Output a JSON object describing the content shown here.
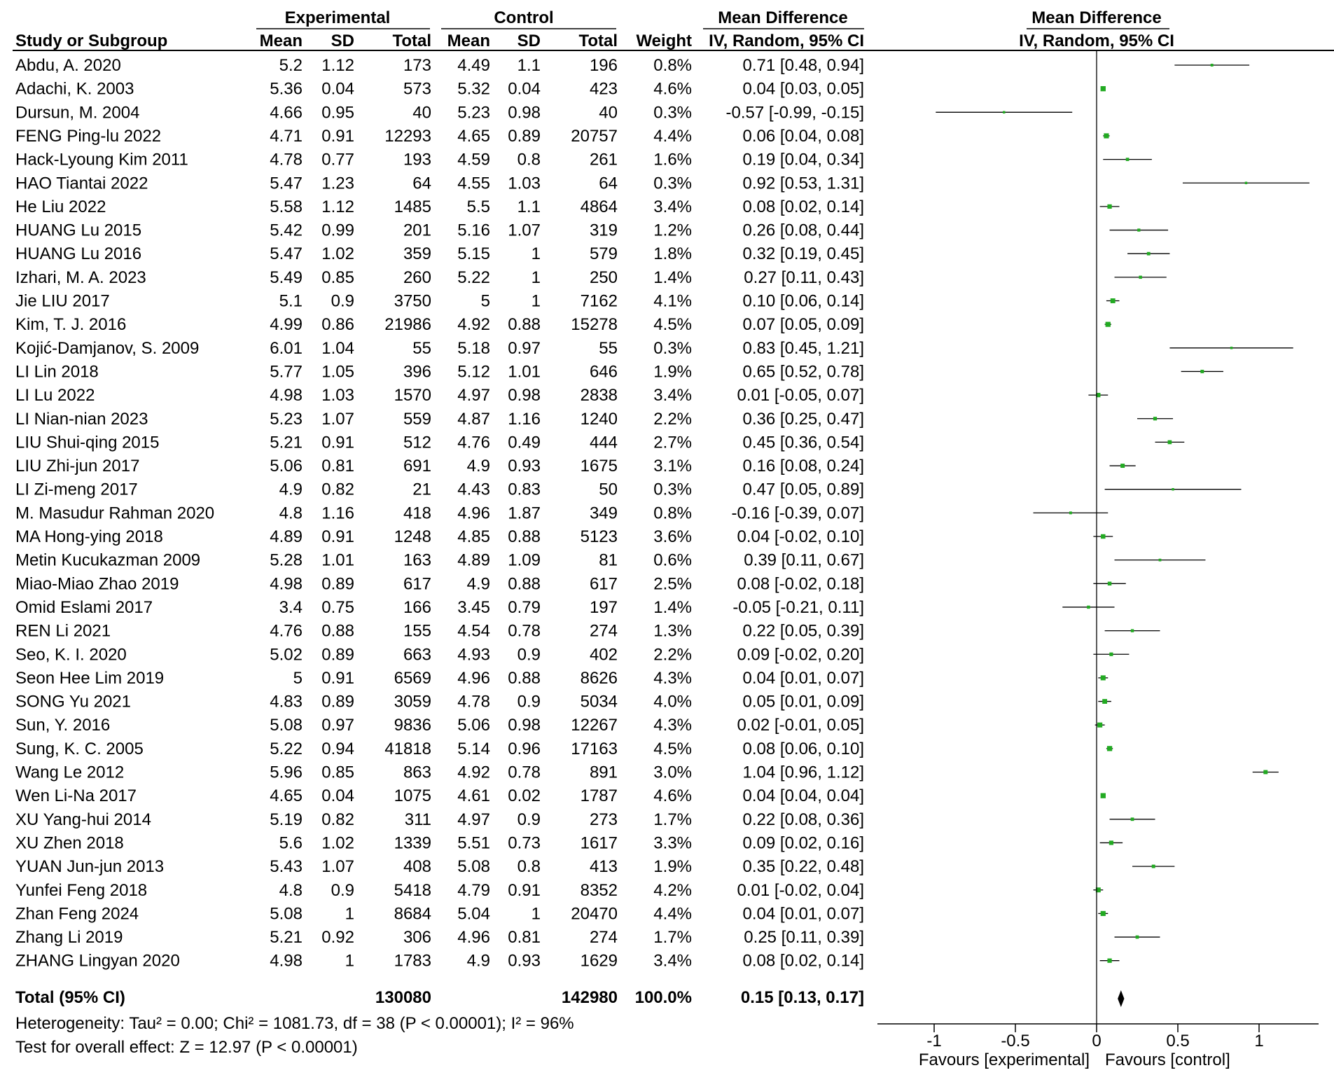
{
  "chart_data": {
    "type": "forest",
    "header": {
      "experimental": "Experimental",
      "control": "Control",
      "mean_difference": "Mean Difference",
      "study_or_subgroup": "Study or Subgroup",
      "mean": "Mean",
      "sd": "SD",
      "total": "Total",
      "weight": "Weight",
      "method": "IV, Random, 95% CI",
      "plot_title": "Mean Difference",
      "plot_method": "IV, Random, 95% CI"
    },
    "columns": [
      "Study or Subgroup",
      "Experimental Mean",
      "Experimental SD",
      "Experimental Total",
      "Control Mean",
      "Control SD",
      "Control Total",
      "Weight",
      "Mean Difference IV, Random, 95% CI"
    ],
    "studies": [
      {
        "study": "Abdu, A. 2020",
        "exp_mean": "5.2",
        "exp_sd": "1.12",
        "exp_total": "173",
        "ctl_mean": "4.49",
        "ctl_sd": "1.1",
        "ctl_total": "196",
        "weight": "0.8%",
        "ci_text": "0.71 [0.48, 0.94]",
        "md": 0.71,
        "lo": 0.48,
        "hi": 0.94
      },
      {
        "study": "Adachi, K. 2003",
        "exp_mean": "5.36",
        "exp_sd": "0.04",
        "exp_total": "573",
        "ctl_mean": "5.32",
        "ctl_sd": "0.04",
        "ctl_total": "423",
        "weight": "4.6%",
        "ci_text": "0.04 [0.03, 0.05]",
        "md": 0.04,
        "lo": 0.03,
        "hi": 0.05
      },
      {
        "study": "Dursun, M. 2004",
        "exp_mean": "4.66",
        "exp_sd": "0.95",
        "exp_total": "40",
        "ctl_mean": "5.23",
        "ctl_sd": "0.98",
        "ctl_total": "40",
        "weight": "0.3%",
        "ci_text": "-0.57 [-0.99, -0.15]",
        "md": -0.57,
        "lo": -0.99,
        "hi": -0.15
      },
      {
        "study": "FENG Ping-lu 2022",
        "exp_mean": "4.71",
        "exp_sd": "0.91",
        "exp_total": "12293",
        "ctl_mean": "4.65",
        "ctl_sd": "0.89",
        "ctl_total": "20757",
        "weight": "4.4%",
        "ci_text": "0.06 [0.04, 0.08]",
        "md": 0.06,
        "lo": 0.04,
        "hi": 0.08
      },
      {
        "study": "Hack-Lyoung Kim 2011",
        "exp_mean": "4.78",
        "exp_sd": "0.77",
        "exp_total": "193",
        "ctl_mean": "4.59",
        "ctl_sd": "0.8",
        "ctl_total": "261",
        "weight": "1.6%",
        "ci_text": "0.19 [0.04, 0.34]",
        "md": 0.19,
        "lo": 0.04,
        "hi": 0.34
      },
      {
        "study": "HAO Tiantai 2022",
        "exp_mean": "5.47",
        "exp_sd": "1.23",
        "exp_total": "64",
        "ctl_mean": "4.55",
        "ctl_sd": "1.03",
        "ctl_total": "64",
        "weight": "0.3%",
        "ci_text": "0.92 [0.53, 1.31]",
        "md": 0.92,
        "lo": 0.53,
        "hi": 1.31
      },
      {
        "study": "He Liu 2022",
        "exp_mean": "5.58",
        "exp_sd": "1.12",
        "exp_total": "1485",
        "ctl_mean": "5.5",
        "ctl_sd": "1.1",
        "ctl_total": "4864",
        "weight": "3.4%",
        "ci_text": "0.08 [0.02, 0.14]",
        "md": 0.08,
        "lo": 0.02,
        "hi": 0.14
      },
      {
        "study": "HUANG Lu 2015",
        "exp_mean": "5.42",
        "exp_sd": "0.99",
        "exp_total": "201",
        "ctl_mean": "5.16",
        "ctl_sd": "1.07",
        "ctl_total": "319",
        "weight": "1.2%",
        "ci_text": "0.26 [0.08, 0.44]",
        "md": 0.26,
        "lo": 0.08,
        "hi": 0.44
      },
      {
        "study": "HUANG Lu 2016",
        "exp_mean": "5.47",
        "exp_sd": "1.02",
        "exp_total": "359",
        "ctl_mean": "5.15",
        "ctl_sd": "1",
        "ctl_total": "579",
        "weight": "1.8%",
        "ci_text": "0.32 [0.19, 0.45]",
        "md": 0.32,
        "lo": 0.19,
        "hi": 0.45
      },
      {
        "study": "Izhari, M. A. 2023",
        "exp_mean": "5.49",
        "exp_sd": "0.85",
        "exp_total": "260",
        "ctl_mean": "5.22",
        "ctl_sd": "1",
        "ctl_total": "250",
        "weight": "1.4%",
        "ci_text": "0.27 [0.11, 0.43]",
        "md": 0.27,
        "lo": 0.11,
        "hi": 0.43
      },
      {
        "study": "Jie LIU 2017",
        "exp_mean": "5.1",
        "exp_sd": "0.9",
        "exp_total": "3750",
        "ctl_mean": "5",
        "ctl_sd": "1",
        "ctl_total": "7162",
        "weight": "4.1%",
        "ci_text": "0.10 [0.06, 0.14]",
        "md": 0.1,
        "lo": 0.06,
        "hi": 0.14
      },
      {
        "study": "Kim, T. J. 2016",
        "exp_mean": "4.99",
        "exp_sd": "0.86",
        "exp_total": "21986",
        "ctl_mean": "4.92",
        "ctl_sd": "0.88",
        "ctl_total": "15278",
        "weight": "4.5%",
        "ci_text": "0.07 [0.05, 0.09]",
        "md": 0.07,
        "lo": 0.05,
        "hi": 0.09
      },
      {
        "study": "Kojić-Damjanov, S. 2009",
        "exp_mean": "6.01",
        "exp_sd": "1.04",
        "exp_total": "55",
        "ctl_mean": "5.18",
        "ctl_sd": "0.97",
        "ctl_total": "55",
        "weight": "0.3%",
        "ci_text": "0.83 [0.45, 1.21]",
        "md": 0.83,
        "lo": 0.45,
        "hi": 1.21
      },
      {
        "study": "LI Lin 2018",
        "exp_mean": "5.77",
        "exp_sd": "1.05",
        "exp_total": "396",
        "ctl_mean": "5.12",
        "ctl_sd": "1.01",
        "ctl_total": "646",
        "weight": "1.9%",
        "ci_text": "0.65 [0.52, 0.78]",
        "md": 0.65,
        "lo": 0.52,
        "hi": 0.78
      },
      {
        "study": "LI Lu 2022",
        "exp_mean": "4.98",
        "exp_sd": "1.03",
        "exp_total": "1570",
        "ctl_mean": "4.97",
        "ctl_sd": "0.98",
        "ctl_total": "2838",
        "weight": "3.4%",
        "ci_text": "0.01 [-0.05, 0.07]",
        "md": 0.01,
        "lo": -0.05,
        "hi": 0.07
      },
      {
        "study": "LI Nian-nian 2023",
        "exp_mean": "5.23",
        "exp_sd": "1.07",
        "exp_total": "559",
        "ctl_mean": "4.87",
        "ctl_sd": "1.16",
        "ctl_total": "1240",
        "weight": "2.2%",
        "ci_text": "0.36 [0.25, 0.47]",
        "md": 0.36,
        "lo": 0.25,
        "hi": 0.47
      },
      {
        "study": "LIU Shui-qing 2015",
        "exp_mean": "5.21",
        "exp_sd": "0.91",
        "exp_total": "512",
        "ctl_mean": "4.76",
        "ctl_sd": "0.49",
        "ctl_total": "444",
        "weight": "2.7%",
        "ci_text": "0.45 [0.36, 0.54]",
        "md": 0.45,
        "lo": 0.36,
        "hi": 0.54
      },
      {
        "study": "LIU Zhi-jun 2017",
        "exp_mean": "5.06",
        "exp_sd": "0.81",
        "exp_total": "691",
        "ctl_mean": "4.9",
        "ctl_sd": "0.93",
        "ctl_total": "1675",
        "weight": "3.1%",
        "ci_text": "0.16 [0.08, 0.24]",
        "md": 0.16,
        "lo": 0.08,
        "hi": 0.24
      },
      {
        "study": "LI Zi-meng 2017",
        "exp_mean": "4.9",
        "exp_sd": "0.82",
        "exp_total": "21",
        "ctl_mean": "4.43",
        "ctl_sd": "0.83",
        "ctl_total": "50",
        "weight": "0.3%",
        "ci_text": "0.47 [0.05, 0.89]",
        "md": 0.47,
        "lo": 0.05,
        "hi": 0.89
      },
      {
        "study": "M. Masudur Rahman 2020",
        "exp_mean": "4.8",
        "exp_sd": "1.16",
        "exp_total": "418",
        "ctl_mean": "4.96",
        "ctl_sd": "1.87",
        "ctl_total": "349",
        "weight": "0.8%",
        "ci_text": "-0.16 [-0.39, 0.07]",
        "md": -0.16,
        "lo": -0.39,
        "hi": 0.07
      },
      {
        "study": "MA Hong-ying 2018",
        "exp_mean": "4.89",
        "exp_sd": "0.91",
        "exp_total": "1248",
        "ctl_mean": "4.85",
        "ctl_sd": "0.88",
        "ctl_total": "5123",
        "weight": "3.6%",
        "ci_text": "0.04 [-0.02, 0.10]",
        "md": 0.04,
        "lo": -0.02,
        "hi": 0.1
      },
      {
        "study": "Metin Kucukazman 2009",
        "exp_mean": "5.28",
        "exp_sd": "1.01",
        "exp_total": "163",
        "ctl_mean": "4.89",
        "ctl_sd": "1.09",
        "ctl_total": "81",
        "weight": "0.6%",
        "ci_text": "0.39 [0.11, 0.67]",
        "md": 0.39,
        "lo": 0.11,
        "hi": 0.67
      },
      {
        "study": "Miao-Miao Zhao 2019",
        "exp_mean": "4.98",
        "exp_sd": "0.89",
        "exp_total": "617",
        "ctl_mean": "4.9",
        "ctl_sd": "0.88",
        "ctl_total": "617",
        "weight": "2.5%",
        "ci_text": "0.08 [-0.02, 0.18]",
        "md": 0.08,
        "lo": -0.02,
        "hi": 0.18
      },
      {
        "study": "Omid Eslami 2017",
        "exp_mean": "3.4",
        "exp_sd": "0.75",
        "exp_total": "166",
        "ctl_mean": "3.45",
        "ctl_sd": "0.79",
        "ctl_total": "197",
        "weight": "1.4%",
        "ci_text": "-0.05 [-0.21, 0.11]",
        "md": -0.05,
        "lo": -0.21,
        "hi": 0.11
      },
      {
        "study": "REN Li 2021",
        "exp_mean": "4.76",
        "exp_sd": "0.88",
        "exp_total": "155",
        "ctl_mean": "4.54",
        "ctl_sd": "0.78",
        "ctl_total": "274",
        "weight": "1.3%",
        "ci_text": "0.22 [0.05, 0.39]",
        "md": 0.22,
        "lo": 0.05,
        "hi": 0.39
      },
      {
        "study": "Seo, K. I. 2020",
        "exp_mean": "5.02",
        "exp_sd": "0.89",
        "exp_total": "663",
        "ctl_mean": "4.93",
        "ctl_sd": "0.9",
        "ctl_total": "402",
        "weight": "2.2%",
        "ci_text": "0.09 [-0.02, 0.20]",
        "md": 0.09,
        "lo": -0.02,
        "hi": 0.2
      },
      {
        "study": "Seon Hee Lim 2019",
        "exp_mean": "5",
        "exp_sd": "0.91",
        "exp_total": "6569",
        "ctl_mean": "4.96",
        "ctl_sd": "0.88",
        "ctl_total": "8626",
        "weight": "4.3%",
        "ci_text": "0.04 [0.01, 0.07]",
        "md": 0.04,
        "lo": 0.01,
        "hi": 0.07
      },
      {
        "study": "SONG Yu 2021",
        "exp_mean": "4.83",
        "exp_sd": "0.89",
        "exp_total": "3059",
        "ctl_mean": "4.78",
        "ctl_sd": "0.9",
        "ctl_total": "5034",
        "weight": "4.0%",
        "ci_text": "0.05 [0.01, 0.09]",
        "md": 0.05,
        "lo": 0.01,
        "hi": 0.09
      },
      {
        "study": "Sun, Y. 2016",
        "exp_mean": "5.08",
        "exp_sd": "0.97",
        "exp_total": "9836",
        "ctl_mean": "5.06",
        "ctl_sd": "0.98",
        "ctl_total": "12267",
        "weight": "4.3%",
        "ci_text": "0.02 [-0.01, 0.05]",
        "md": 0.02,
        "lo": -0.01,
        "hi": 0.05
      },
      {
        "study": "Sung, K. C. 2005",
        "exp_mean": "5.22",
        "exp_sd": "0.94",
        "exp_total": "41818",
        "ctl_mean": "5.14",
        "ctl_sd": "0.96",
        "ctl_total": "17163",
        "weight": "4.5%",
        "ci_text": "0.08 [0.06, 0.10]",
        "md": 0.08,
        "lo": 0.06,
        "hi": 0.1
      },
      {
        "study": "Wang Le 2012",
        "exp_mean": "5.96",
        "exp_sd": "0.85",
        "exp_total": "863",
        "ctl_mean": "4.92",
        "ctl_sd": "0.78",
        "ctl_total": "891",
        "weight": "3.0%",
        "ci_text": "1.04 [0.96, 1.12]",
        "md": 1.04,
        "lo": 0.96,
        "hi": 1.12
      },
      {
        "study": "Wen Li-Na 2017",
        "exp_mean": "4.65",
        "exp_sd": "0.04",
        "exp_total": "1075",
        "ctl_mean": "4.61",
        "ctl_sd": "0.02",
        "ctl_total": "1787",
        "weight": "4.6%",
        "ci_text": "0.04 [0.04, 0.04]",
        "md": 0.04,
        "lo": 0.04,
        "hi": 0.04
      },
      {
        "study": "XU Yang-hui 2014",
        "exp_mean": "5.19",
        "exp_sd": "0.82",
        "exp_total": "311",
        "ctl_mean": "4.97",
        "ctl_sd": "0.9",
        "ctl_total": "273",
        "weight": "1.7%",
        "ci_text": "0.22 [0.08, 0.36]",
        "md": 0.22,
        "lo": 0.08,
        "hi": 0.36
      },
      {
        "study": "XU Zhen 2018",
        "exp_mean": "5.6",
        "exp_sd": "1.02",
        "exp_total": "1339",
        "ctl_mean": "5.51",
        "ctl_sd": "0.73",
        "ctl_total": "1617",
        "weight": "3.3%",
        "ci_text": "0.09 [0.02, 0.16]",
        "md": 0.09,
        "lo": 0.02,
        "hi": 0.16
      },
      {
        "study": "YUAN Jun-jun 2013",
        "exp_mean": "5.43",
        "exp_sd": "1.07",
        "exp_total": "408",
        "ctl_mean": "5.08",
        "ctl_sd": "0.8",
        "ctl_total": "413",
        "weight": "1.9%",
        "ci_text": "0.35 [0.22, 0.48]",
        "md": 0.35,
        "lo": 0.22,
        "hi": 0.48
      },
      {
        "study": "Yunfei Feng 2018",
        "exp_mean": "4.8",
        "exp_sd": "0.9",
        "exp_total": "5418",
        "ctl_mean": "4.79",
        "ctl_sd": "0.91",
        "ctl_total": "8352",
        "weight": "4.2%",
        "ci_text": "0.01 [-0.02, 0.04]",
        "md": 0.01,
        "lo": -0.02,
        "hi": 0.04
      },
      {
        "study": "Zhan Feng 2024",
        "exp_mean": "5.08",
        "exp_sd": "1",
        "exp_total": "8684",
        "ctl_mean": "5.04",
        "ctl_sd": "1",
        "ctl_total": "20470",
        "weight": "4.4%",
        "ci_text": "0.04 [0.01, 0.07]",
        "md": 0.04,
        "lo": 0.01,
        "hi": 0.07
      },
      {
        "study": "Zhang Li 2019",
        "exp_mean": "5.21",
        "exp_sd": "0.92",
        "exp_total": "306",
        "ctl_mean": "4.96",
        "ctl_sd": "0.81",
        "ctl_total": "274",
        "weight": "1.7%",
        "ci_text": "0.25 [0.11, 0.39]",
        "md": 0.25,
        "lo": 0.11,
        "hi": 0.39
      },
      {
        "study": "ZHANG Lingyan 2020",
        "exp_mean": "4.98",
        "exp_sd": "1",
        "exp_total": "1783",
        "ctl_mean": "4.9",
        "ctl_sd": "0.93",
        "ctl_total": "1629",
        "weight": "3.4%",
        "ci_text": "0.08 [0.02, 0.14]",
        "md": 0.08,
        "lo": 0.02,
        "hi": 0.14
      }
    ],
    "total": {
      "label": "Total (95% CI)",
      "exp_total": "130080",
      "ctl_total": "142980",
      "weight": "100.0%",
      "ci_text": "0.15 [0.13, 0.17]",
      "md": 0.15,
      "lo": 0.13,
      "hi": 0.17
    },
    "heterogeneity": "Heterogeneity: Tau² = 0.00; Chi² = 1081.73, df = 38 (P < 0.00001); I² = 96%",
    "overall_effect": "Test for overall effect: Z = 12.97 (P < 0.00001)",
    "x_axis": {
      "ticks": [
        -1,
        -0.5,
        0,
        0.5,
        1
      ],
      "tick_labels": [
        "-1",
        "-0.5",
        "0",
        "0.5",
        "1"
      ],
      "xlim": [
        -1.35,
        1.35
      ],
      "left_label": "Favours [experimental]",
      "right_label": "Favours [control]"
    },
    "colors": {
      "marker": "#22aa22",
      "line": "#000000",
      "text": "#000000"
    }
  }
}
